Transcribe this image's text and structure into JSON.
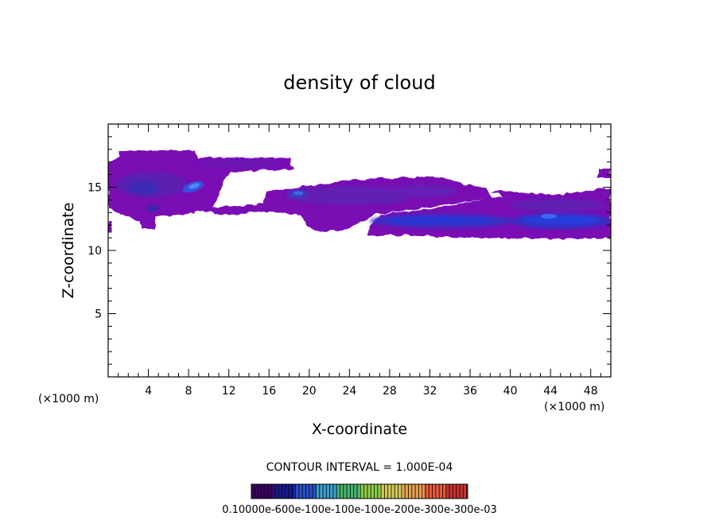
{
  "chart_data": {
    "type": "heatmap",
    "title": "density of cloud",
    "xlabel": "X-coordinate",
    "ylabel": "Z-coordinate",
    "x_unit": "(×1000 m)",
    "x_unit_right": "(×1000 m)",
    "xlim": [
      0,
      50
    ],
    "ylim": [
      0,
      20
    ],
    "xticks": [
      4,
      8,
      12,
      16,
      20,
      24,
      28,
      32,
      36,
      40,
      44,
      48
    ],
    "yticks": [
      5,
      10,
      15
    ],
    "contour_interval_text": "CONTOUR INTERVAL = 1.000E-04",
    "colorbar_label_text": "0.10000e-600e-100e-100e-100e-200e-300e-300e-03",
    "colorbar_colors": [
      "#3a0060",
      "#1a1a90",
      "#2a50c8",
      "#3c9cc8",
      "#46b46e",
      "#8ccc46",
      "#d2c85a",
      "#e6a050",
      "#e65a3c",
      "#c83232"
    ],
    "regions": [
      {
        "name": "upper-left cloud",
        "x_range": [
          0,
          18
        ],
        "z_range": [
          11.5,
          17.8
        ],
        "level": "low"
      },
      {
        "name": "mid cloud",
        "x_range": [
          16,
          38
        ],
        "z_range": [
          11.5,
          15.5
        ],
        "level": "low"
      },
      {
        "name": "right cloud",
        "x_range": [
          26,
          50
        ],
        "z_range": [
          11,
          14.8
        ],
        "level": "low"
      },
      {
        "name": "core near x=8.5",
        "x": 8.5,
        "z": 15,
        "level": "high"
      },
      {
        "name": "core near x=19",
        "x": 19,
        "z": 14.5,
        "level": "mid"
      },
      {
        "name": "band x=28-39",
        "x_range": [
          28,
          39
        ],
        "z": 12.3,
        "level": "mid"
      },
      {
        "name": "band x=41-50",
        "x_range": [
          41,
          50
        ],
        "z": 12.2,
        "level": "mid"
      }
    ]
  }
}
